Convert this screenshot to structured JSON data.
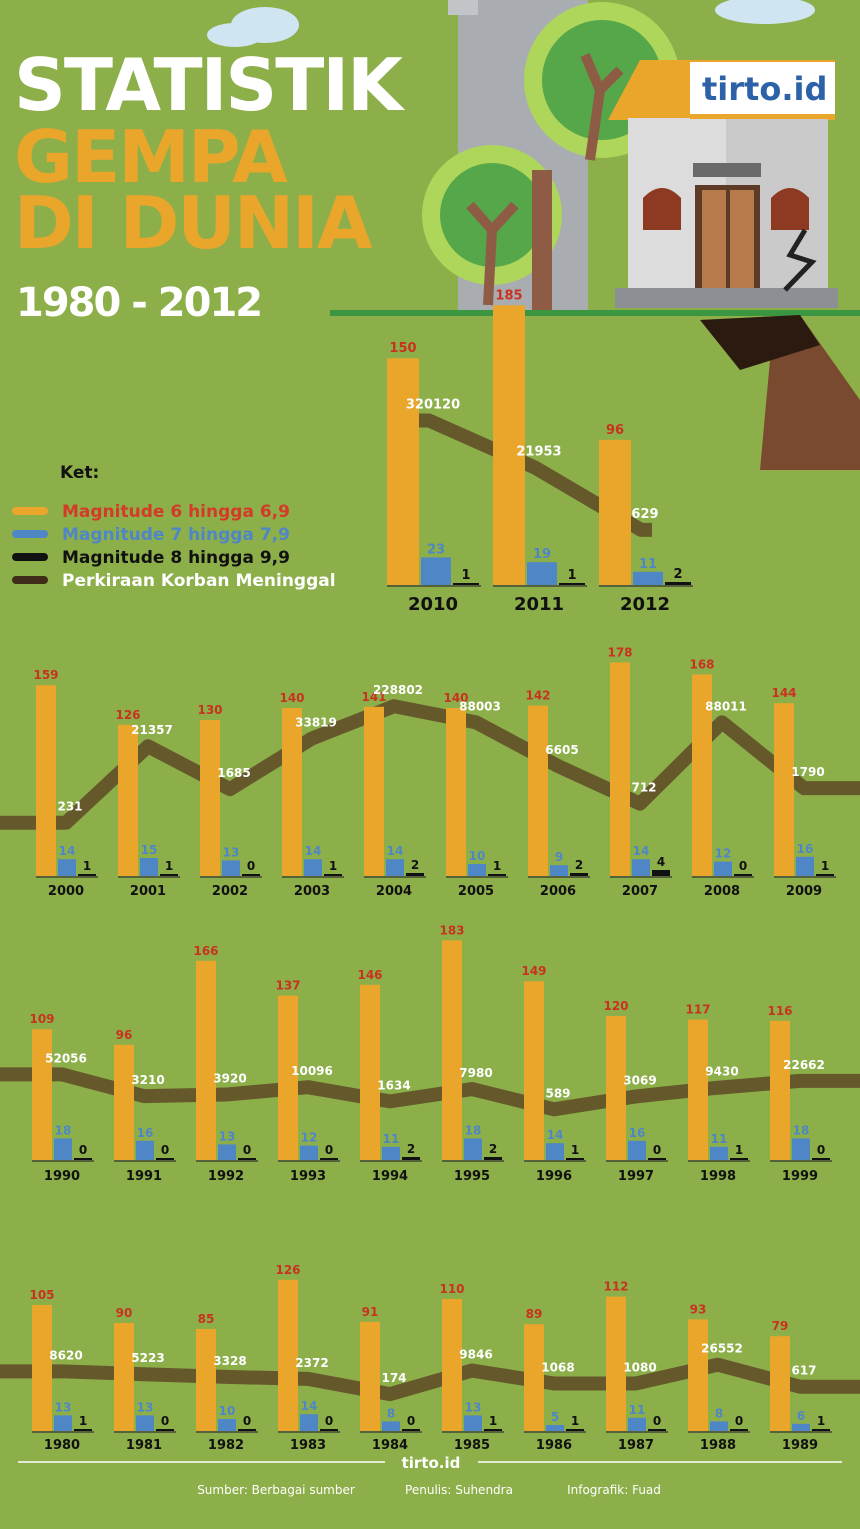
{
  "title": {
    "line1": "STATISTIK",
    "line2": "GEMPA",
    "line3": "DI DUNIA",
    "years": "1980 - 2012"
  },
  "logo": "tirto.id",
  "legend": {
    "heading": "Ket:",
    "items": [
      {
        "label": "Magnitude 6 hingga 6,9",
        "color": "#d33a27",
        "swatch": "#e9a62b"
      },
      {
        "label": "Magnitude 7 hingga 7,9",
        "color": "#4f86c6",
        "swatch": "#4f86c6"
      },
      {
        "label": "Magnitude 8 hingga 9,9",
        "color": "#111111",
        "swatch": "#111111"
      },
      {
        "label": "Perkiraan Korban Meninggal",
        "color": "#ffffff",
        "swatch": "#3f2d1a"
      }
    ]
  },
  "colors": {
    "background": "#8daf4a",
    "m6": "#e9a62b",
    "m7": "#4f86c6",
    "m8": "#111111",
    "deaths_band": "#5e4a26",
    "label_m6": "#c8321f",
    "label_m7": "#4f86c6"
  },
  "chart_data": [
    {
      "type": "bar",
      "categories": [
        "2010",
        "2011",
        "2012"
      ],
      "series": [
        {
          "name": "Magnitude 6 hingga 6,9",
          "values": [
            150,
            185,
            96
          ]
        },
        {
          "name": "Magnitude 7 hingga 7,9",
          "values": [
            23,
            19,
            11
          ]
        },
        {
          "name": "Magnitude 8 hingga 9,9",
          "values": [
            1,
            1,
            2
          ]
        },
        {
          "name": "Perkiraan Korban Meninggal",
          "values": [
            320120,
            21953,
            629
          ]
        }
      ]
    },
    {
      "type": "bar",
      "categories": [
        "2000",
        "2001",
        "2002",
        "2003",
        "2004",
        "2005",
        "2006",
        "2007",
        "2008",
        "2009"
      ],
      "series": [
        {
          "name": "Magnitude 6 hingga 6,9",
          "values": [
            159,
            126,
            130,
            140,
            141,
            140,
            142,
            178,
            168,
            144
          ]
        },
        {
          "name": "Magnitude 7 hingga 7,9",
          "values": [
            14,
            15,
            13,
            14,
            14,
            10,
            9,
            14,
            12,
            16
          ]
        },
        {
          "name": "Magnitude 8 hingga 9,9",
          "values": [
            1,
            1,
            0,
            1,
            2,
            1,
            2,
            4,
            0,
            1
          ]
        },
        {
          "name": "Perkiraan Korban Meninggal",
          "values": [
            231,
            21357,
            1685,
            33819,
            228802,
            88003,
            6605,
            712,
            88011,
            1790
          ]
        }
      ]
    },
    {
      "type": "bar",
      "categories": [
        "1990",
        "1991",
        "1992",
        "1993",
        "1994",
        "1995",
        "1996",
        "1997",
        "1998",
        "1999"
      ],
      "series": [
        {
          "name": "Magnitude 6 hingga 6,9",
          "values": [
            109,
            96,
            166,
            137,
            146,
            183,
            149,
            120,
            117,
            116
          ]
        },
        {
          "name": "Magnitude 7 hingga 7,9",
          "values": [
            18,
            16,
            13,
            12,
            11,
            18,
            14,
            16,
            11,
            18
          ]
        },
        {
          "name": "Magnitude 8 hingga 9,9",
          "values": [
            0,
            0,
            0,
            0,
            2,
            2,
            1,
            0,
            1,
            0
          ]
        },
        {
          "name": "Perkiraan Korban Meninggal",
          "values": [
            52056,
            3210,
            3920,
            10096,
            1634,
            7980,
            589,
            3069,
            9430,
            22662
          ]
        }
      ]
    },
    {
      "type": "bar",
      "categories": [
        "1980",
        "1981",
        "1982",
        "1983",
        "1984",
        "1985",
        "1986",
        "1987",
        "1988",
        "1989"
      ],
      "series": [
        {
          "name": "Magnitude 6 hingga 6,9",
          "values": [
            105,
            90,
            85,
            126,
            91,
            110,
            89,
            112,
            93,
            79
          ]
        },
        {
          "name": "Magnitude 7 hingga 7,9",
          "values": [
            13,
            13,
            10,
            14,
            8,
            13,
            5,
            11,
            8,
            6
          ]
        },
        {
          "name": "Magnitude 8 hingga 9,9",
          "values": [
            1,
            0,
            0,
            0,
            0,
            1,
            1,
            0,
            0,
            1
          ]
        },
        {
          "name": "Perkiraan Korban Meninggal",
          "values": [
            8620,
            5223,
            3328,
            2372,
            174,
            9846,
            1068,
            1080,
            26552,
            617
          ]
        }
      ]
    }
  ],
  "footer": {
    "brand": "tirto.id",
    "source": "Sumber: Berbagai sumber",
    "writer": "Penulis: Suhendra",
    "graphic": "Infografik: Fuad"
  }
}
